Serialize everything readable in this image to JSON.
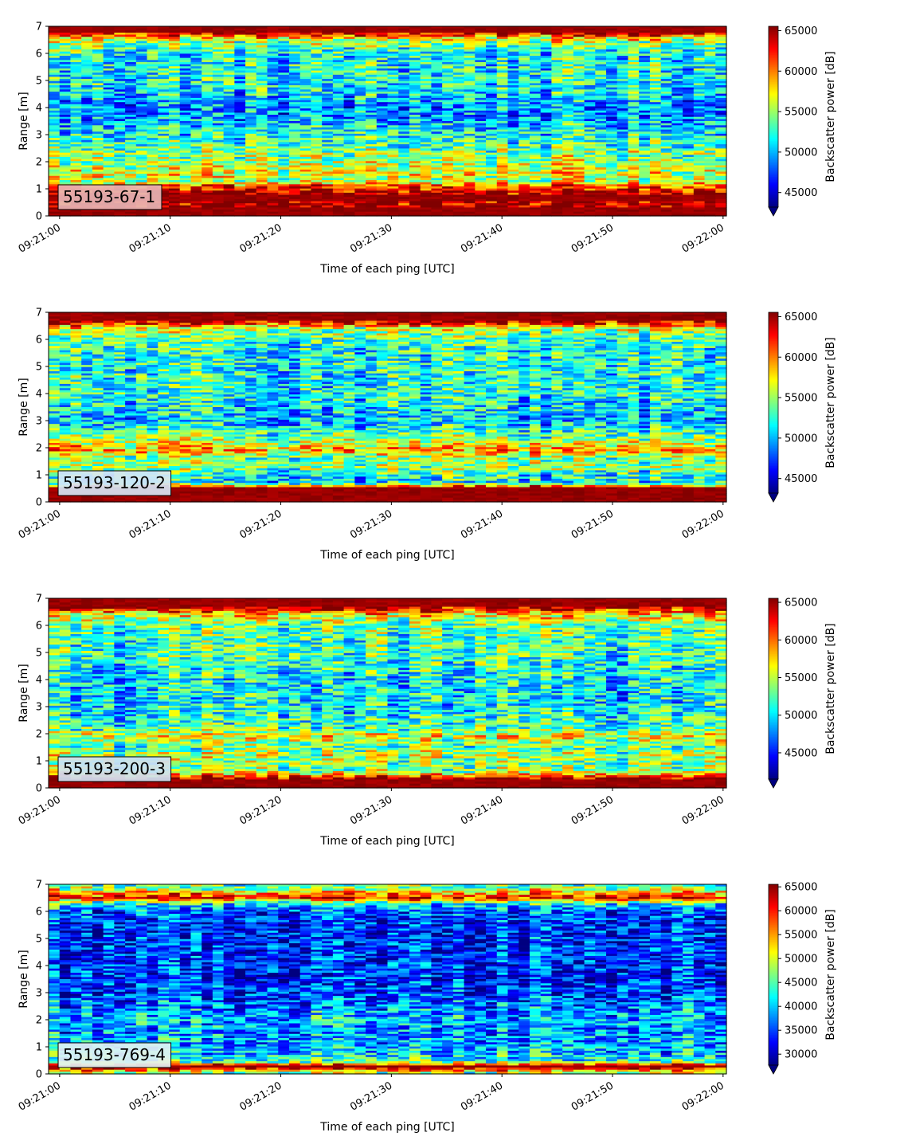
{
  "chart_data": [
    {
      "type": "heatmap",
      "label_box": "55193-67-1",
      "label_box_color": "#e8b4b4",
      "xlabel": "Time of each ping [UTC]",
      "ylabel": "Range [m]",
      "colorbar_label": "Backscatter power [dB]",
      "x_ticks": [
        "09:21:00",
        "09:21:10",
        "09:21:20",
        "09:21:30",
        "09:21:40",
        "09:21:50",
        "09:22:00"
      ],
      "y_ticks": [
        0,
        1,
        2,
        3,
        4,
        5,
        6,
        7
      ],
      "ylim": [
        0,
        7
      ],
      "x_range_seconds": [
        -1,
        60.3
      ],
      "colorbar_ticks": [
        45000,
        50000,
        55000,
        60000,
        65000
      ],
      "clim": [
        43200,
        65535
      ],
      "colormap": "jet",
      "profile": {
        "range_m": [
          0.0,
          0.25,
          0.4,
          0.7,
          0.9,
          1.15,
          1.3,
          1.5,
          1.8,
          2.0,
          2.3,
          2.6,
          3.0,
          3.5,
          4.0,
          4.5,
          5.0,
          5.5,
          6.0,
          6.5,
          6.8,
          7.0
        ],
        "power": [
          65535,
          65535,
          64000,
          65535,
          64000,
          60000,
          55000,
          57000,
          56000,
          55000,
          55000,
          53000,
          52000,
          50000,
          49000,
          51000,
          52000,
          52000,
          52000,
          56000,
          65535,
          65535
        ]
      }
    },
    {
      "type": "heatmap",
      "label_box": "55193-120-2",
      "label_box_color": "#d7e6f5",
      "xlabel": "Time of each ping [UTC]",
      "ylabel": "Range [m]",
      "colorbar_label": "Backscatter power [dB]",
      "x_ticks": [
        "09:21:00",
        "09:21:10",
        "09:21:20",
        "09:21:30",
        "09:21:40",
        "09:21:50",
        "09:22:00"
      ],
      "y_ticks": [
        0,
        1,
        2,
        3,
        4,
        5,
        6,
        7
      ],
      "ylim": [
        0,
        7
      ],
      "x_range_seconds": [
        -1,
        60.3
      ],
      "colorbar_ticks": [
        45000,
        50000,
        55000,
        60000,
        65000
      ],
      "clim": [
        43200,
        65535
      ],
      "colormap": "jet",
      "profile": {
        "range_m": [
          0.0,
          0.25,
          0.5,
          0.7,
          1.0,
          1.3,
          1.6,
          1.9,
          2.1,
          2.4,
          2.7,
          3.0,
          3.5,
          4.0,
          4.5,
          5.0,
          5.5,
          6.0,
          6.4,
          6.7,
          7.0
        ],
        "power": [
          65535,
          65535,
          65535,
          51000,
          52000,
          55000,
          54000,
          59000,
          57000,
          54000,
          52000,
          50000,
          51000,
          52000,
          52000,
          52000,
          52000,
          53000,
          56000,
          65535,
          65535
        ]
      }
    },
    {
      "type": "heatmap",
      "label_box": "55193-200-3",
      "label_box_color": "#cfe1f2",
      "xlabel": "Time of each ping [UTC]",
      "ylabel": "Range [m]",
      "colorbar_label": "Backscatter power [dB]",
      "x_ticks": [
        "09:21:00",
        "09:21:10",
        "09:21:20",
        "09:21:30",
        "09:21:40",
        "09:21:50",
        "09:22:00"
      ],
      "y_ticks": [
        0,
        1,
        2,
        3,
        4,
        5,
        6,
        7
      ],
      "ylim": [
        0,
        7
      ],
      "x_range_seconds": [
        -1,
        60.3
      ],
      "colorbar_ticks": [
        45000,
        50000,
        55000,
        60000,
        65000
      ],
      "clim": [
        41500,
        65535
      ],
      "colormap": "jet",
      "profile": {
        "range_m": [
          0.0,
          0.2,
          0.35,
          0.6,
          0.9,
          1.2,
          1.5,
          1.9,
          2.2,
          2.6,
          3.0,
          3.5,
          4.0,
          4.5,
          5.0,
          5.5,
          6.0,
          6.4,
          6.7,
          7.0
        ],
        "power": [
          65535,
          65535,
          64000,
          54000,
          53000,
          55000,
          52000,
          56000,
          52000,
          51000,
          50000,
          50000,
          50000,
          51000,
          52000,
          52000,
          53000,
          57000,
          65535,
          65535
        ]
      }
    },
    {
      "type": "heatmap",
      "label_box": "55193-769-4",
      "label_box_color": "#e2f1f2",
      "xlabel": "Time of each ping [UTC]",
      "ylabel": "Range [m]",
      "colorbar_label": "Backscatter power [dB]",
      "x_ticks": [
        "09:21:00",
        "09:21:10",
        "09:21:20",
        "09:21:30",
        "09:21:40",
        "09:21:50",
        "09:22:00"
      ],
      "y_ticks": [
        0,
        1,
        2,
        3,
        4,
        5,
        6,
        7
      ],
      "ylim": [
        0,
        7
      ],
      "x_range_seconds": [
        -1,
        60.3
      ],
      "colorbar_ticks": [
        30000,
        35000,
        40000,
        45000,
        50000,
        55000,
        60000,
        65000
      ],
      "clim": [
        27700,
        65535
      ],
      "colormap": "jet",
      "profile": {
        "range_m": [
          0.0,
          0.15,
          0.3,
          0.45,
          0.8,
          1.2,
          1.6,
          2.0,
          2.5,
          3.0,
          3.5,
          4.0,
          4.5,
          5.0,
          5.5,
          6.0,
          6.3,
          6.5,
          6.8,
          7.0
        ],
        "power": [
          44000,
          58000,
          65535,
          44000,
          40000,
          39000,
          38000,
          40000,
          37000,
          35000,
          34000,
          34000,
          34000,
          34000,
          34000,
          36000,
          44000,
          62000,
          50000,
          44000
        ]
      }
    }
  ]
}
